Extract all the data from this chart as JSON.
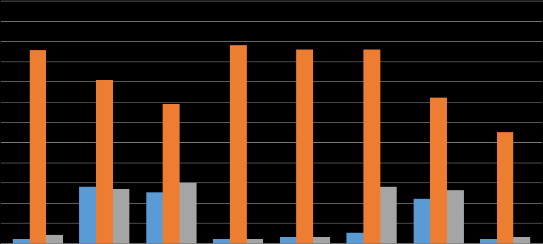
{
  "blue_vals": [
    0.2,
    2.8,
    2.5,
    0.2,
    0.3,
    0.5,
    2.2,
    0.2
  ],
  "orange_vals": [
    9.55,
    8.09,
    6.9,
    9.8,
    9.6,
    9.6,
    7.2,
    5.5
  ],
  "gray_vals": [
    0.4,
    2.7,
    3.0,
    0.2,
    0.3,
    2.8,
    2.6,
    0.3
  ],
  "bar_width": 0.25,
  "colors": {
    "blue": "#5b9bd5",
    "orange": "#ed7d31",
    "gray": "#a5a5a5"
  },
  "bg_color": "#000000",
  "grid_color": "#7f7f7f",
  "ylim": [
    0,
    12
  ],
  "ytick_step": 1,
  "n_groups": 8
}
